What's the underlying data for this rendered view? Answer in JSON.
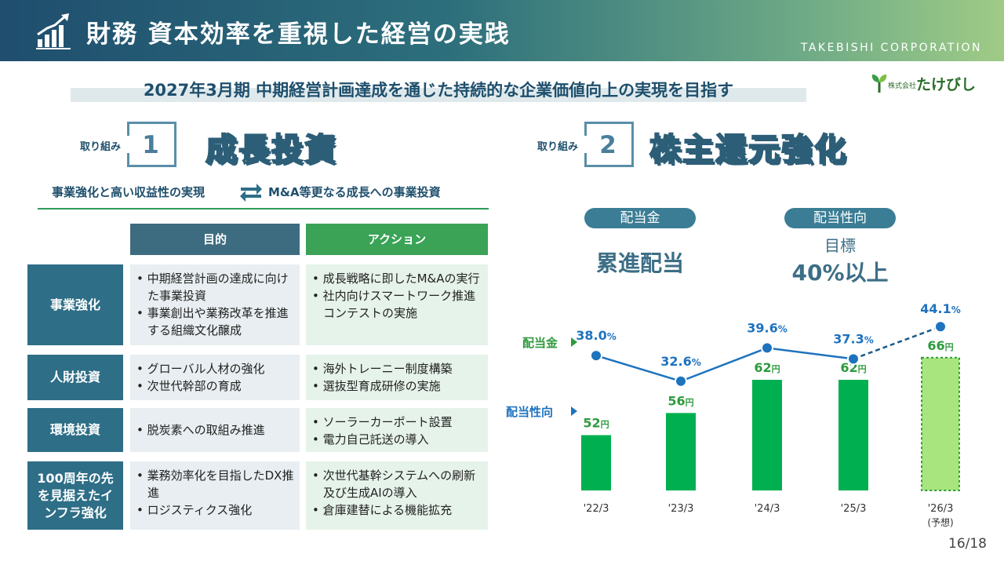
{
  "header": {
    "title": "財務 資本効率を重視した経営の実践",
    "company": "TAKEBISHI CORPORATION"
  },
  "subtitle": "2027年3月期 中期経営計画達成を通じた持続的な企業価値向上の実現を目指す",
  "logo": {
    "small": "株式会社",
    "name": "たけびし"
  },
  "left": {
    "tag": "取り組み",
    "num": "1",
    "title": "成長投資",
    "line_left": "事業強化と高い収益性の実現",
    "line_right": "M&A等更なる成長への事業投資",
    "col_purpose": "目的",
    "col_action": "アクション",
    "rows": [
      {
        "label": "事業強化",
        "purpose": [
          "• 中期経営計画の達成に向けた事業投資",
          "• 事業創出や業務改革を推進する組織文化醸成"
        ],
        "action": [
          "• 成長戦略に即したM&Aの実行",
          "• 社内向けスマートワーク推進コンテストの実施"
        ]
      },
      {
        "label": "人財投資",
        "purpose": [
          "• グローバル人材の強化",
          "• 次世代幹部の育成"
        ],
        "action": [
          "• 海外トレーニー制度構築",
          "• 選抜型育成研修の実施"
        ]
      },
      {
        "label": "環境投資",
        "purpose": [
          "• 脱炭素への取組み推進"
        ],
        "action": [
          "• ソーラーカーポート設置",
          "• 電力自己託送の導入"
        ]
      },
      {
        "label": "100周年の先を見据えたインフラ強化",
        "purpose": [
          "• 業務効率化を目指したDX推進",
          "• ロジスティクス強化"
        ],
        "action": [
          "• 次世代基幹システムへの刷新及び生成AIの導入",
          "• 倉庫建替による機能拡充"
        ]
      }
    ]
  },
  "right": {
    "tag": "取り組み",
    "num": "2",
    "title": "株主還元強化",
    "pill1": "配当金",
    "policy1": "累進配当",
    "pill2": "配当性向",
    "target_label": "目標",
    "target_value": "40%以上",
    "legend_dividend": "配当金",
    "legend_payout": "配当性向"
  },
  "chart_data": {
    "type": "bar",
    "categories": [
      "'22/3",
      "'23/3",
      "'24/3",
      "'25/3",
      "'26/3"
    ],
    "category_notes": [
      "",
      "",
      "",
      "",
      "(予想)"
    ],
    "series": [
      {
        "name": "配当金",
        "values": [
          52,
          56,
          62,
          62,
          66
        ],
        "unit": "円",
        "color": "#00b050",
        "forecast_color": "#a9e57e"
      },
      {
        "name": "配当性向",
        "values": [
          38.0,
          32.6,
          39.6,
          37.3,
          44.1
        ],
        "unit": "%",
        "color": "#1e73be",
        "forecast_line": "dashed"
      }
    ],
    "bar_labels": [
      "52",
      "56",
      "62",
      "62",
      "66"
    ],
    "payout_labels": [
      "38.0",
      "32.6",
      "39.6",
      "37.3",
      "44.1"
    ]
  },
  "page": "16/18"
}
